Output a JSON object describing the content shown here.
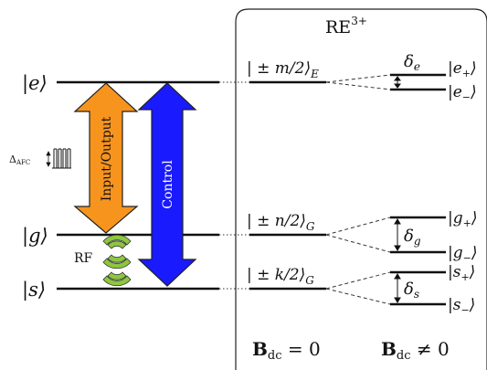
{
  "box_title": {
    "main": "RE",
    "sup": "3+"
  },
  "left_levels": [
    {
      "id": "e",
      "label": "|e⟩"
    },
    {
      "id": "g",
      "label": "|g⟩"
    },
    {
      "id": "s",
      "label": "|s⟩"
    }
  ],
  "arrows": {
    "input_output": {
      "label": "Input/Output",
      "color": "#f7941d"
    },
    "control": {
      "label": "Control",
      "color": "#1a1aff"
    }
  },
  "afc": {
    "label": "Δ",
    "sub": "AFC"
  },
  "rf": {
    "label": "RF",
    "color": "#8dc63f"
  },
  "middle_levels": [
    {
      "id": "E",
      "prefix": "| ± m/2⟩",
      "sub": "E"
    },
    {
      "id": "G1",
      "prefix": "| ± n/2⟩",
      "sub": "G"
    },
    {
      "id": "G2",
      "prefix": "| ± k/2⟩",
      "sub": "G"
    }
  ],
  "splittings": [
    {
      "id": "e",
      "delta": "δ",
      "delta_sub": "e",
      "upper": "|e",
      "upper_sub": "+",
      "lower": "|e",
      "lower_sub": "−"
    },
    {
      "id": "g",
      "delta": "δ",
      "delta_sub": "g",
      "upper": "|g",
      "upper_sub": "+",
      "lower": "|g",
      "lower_sub": "−"
    },
    {
      "id": "s",
      "delta": "δ",
      "delta_sub": "s",
      "upper": "|s",
      "upper_sub": "+",
      "lower": "|s",
      "lower_sub": "−"
    }
  ],
  "bottom_labels": {
    "zero": {
      "B": "B",
      "sub": "dc",
      "rel": " = 0"
    },
    "nonzero": {
      "B": "B",
      "sub": "dc",
      "rel": " ≠ 0"
    }
  }
}
